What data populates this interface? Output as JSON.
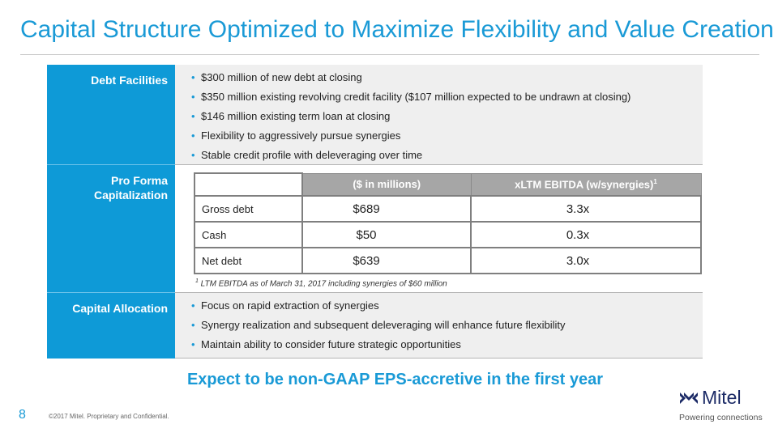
{
  "title": "Capital Structure Optimized to Maximize Flexibility and Value Creation",
  "rows": {
    "debt": {
      "label": "Debt Facilities",
      "bullets": [
        "$300 million of new debt at closing",
        "$350 million existing revolving credit facility ($107 million expected to be undrawn at closing)",
        "$146 million existing term loan at closing",
        "Flexibility to aggressively pursue synergies",
        "Stable credit profile with deleveraging over time"
      ]
    },
    "proforma": {
      "label_line1": "Pro Forma",
      "label_line2": "Capitalization",
      "table": {
        "headers": [
          "",
          "($ in millions)",
          "xLTM EBITDA (w/synergies)",
          "1"
        ],
        "rows": [
          [
            "Gross debt",
            "$689",
            "3.3x"
          ],
          [
            "Cash",
            "$50",
            "0.3x"
          ],
          [
            "Net debt",
            "$639",
            "3.0x"
          ]
        ]
      },
      "footnote_mark": "1",
      "footnote": " LTM EBITDA as of March 31, 2017 including synergies of $60 million"
    },
    "allocation": {
      "label": "Capital Allocation",
      "bullets": [
        "Focus on rapid extraction of synergies",
        "Synergy realization and subsequent deleveraging will enhance future flexibility",
        "Maintain ability to consider future strategic opportunities"
      ]
    }
  },
  "callout": "Expect to be non-GAAP EPS-accretive in the first year",
  "footer": {
    "page_number": "8",
    "copyright": "©2017 Mitel. Proprietary and Confidential.",
    "logo_word": "Mitel",
    "logo_tagline": "Powering connections"
  },
  "colors": {
    "accent": "#1a9ad6",
    "label_bg": "#0e9ad7",
    "brand_navy": "#1b2a66"
  }
}
